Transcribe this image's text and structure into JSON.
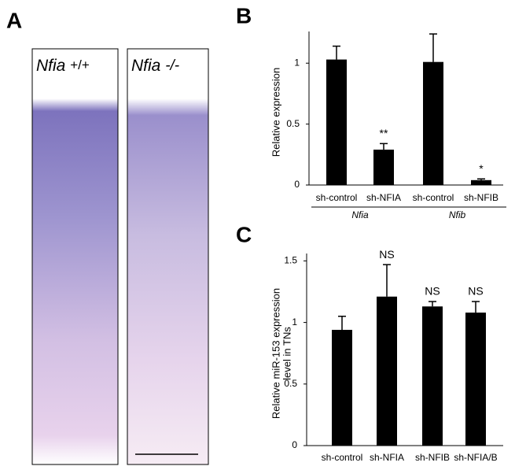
{
  "figure": {
    "panel_labels": [
      "A",
      "B",
      "C"
    ],
    "images": [
      {
        "gene": "Nfia",
        "genotype": "+/+"
      },
      {
        "gene": "Nfia",
        "genotype": "-/-"
      }
    ]
  },
  "chart_data": [
    {
      "type": "bar",
      "y_label": [
        "Relative expression"
      ],
      "categories": [
        "sh-control",
        "sh-NFIA",
        "sh-control",
        "sh-NFIB"
      ],
      "groups": [
        {
          "name": "Nfia",
          "categories": [
            0,
            1
          ]
        },
        {
          "name": "Nfib",
          "categories": [
            2,
            3
          ]
        }
      ],
      "values": [
        1.03,
        0.29,
        1.01,
        0.04
      ],
      "errors": [
        0.11,
        0.05,
        0.23,
        0.01
      ],
      "significance": [
        null,
        "**",
        null,
        "*"
      ],
      "color": "#000000",
      "ylim": [
        0,
        1.26
      ],
      "yticks": [
        0,
        0.5,
        1
      ]
    },
    {
      "type": "bar",
      "y_label": [
        "Relative miR-153 expression",
        "level in TNs"
      ],
      "categories": [
        "sh-control",
        "sh-NFIA",
        "sh-NFIB",
        "sh-NFIA/B"
      ],
      "values": [
        0.94,
        1.21,
        1.13,
        1.08
      ],
      "errors": [
        0.11,
        0.26,
        0.04,
        0.09
      ],
      "significance": [
        null,
        "NS",
        "NS",
        "NS"
      ],
      "color": "#000000",
      "ylim": [
        0,
        1.56
      ],
      "yticks": [
        0,
        0.5,
        1,
        1.5
      ]
    }
  ]
}
